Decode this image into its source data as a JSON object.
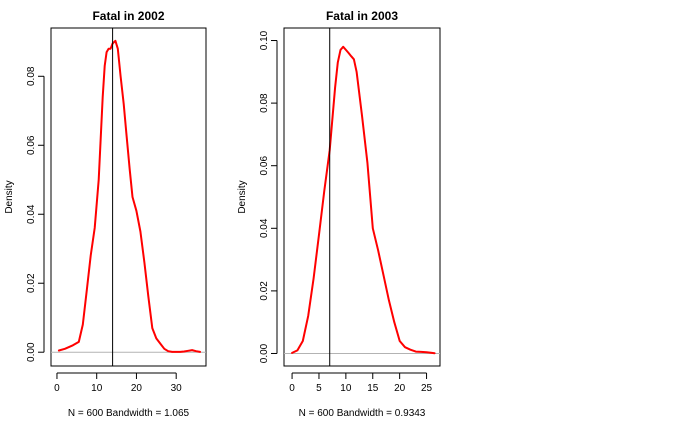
{
  "chart_data": [
    {
      "type": "line",
      "title": "Fatal in 2002",
      "xlabel": "N = 600   Bandwidth = 1.065",
      "ylabel": "Density",
      "xlim": [
        -1.5,
        37.5
      ],
      "ylim": [
        -0.004,
        0.094
      ],
      "xticks": [
        0,
        10,
        20,
        30
      ],
      "yticks": [
        0.0,
        0.02,
        0.04,
        0.06,
        0.08
      ],
      "ytick_labels": [
        "0.00",
        "0.02",
        "0.04",
        "0.06",
        "0.08"
      ],
      "vline": 14,
      "color": "#ff0000",
      "x": [
        0.5,
        2,
        4,
        5.5,
        6.5,
        7.5,
        8.5,
        9.5,
        10.5,
        11,
        11.5,
        12,
        12.5,
        13,
        13.5,
        14,
        14.7,
        15.3,
        16,
        16.8,
        17.5,
        18.3,
        19,
        20,
        21,
        22,
        23,
        24,
        25,
        26,
        27,
        28,
        29,
        30,
        31,
        32,
        33,
        34,
        35,
        36
      ],
      "y": [
        0.0005,
        0.001,
        0.002,
        0.003,
        0.008,
        0.018,
        0.028,
        0.036,
        0.05,
        0.062,
        0.074,
        0.083,
        0.087,
        0.088,
        0.088,
        0.0895,
        0.0903,
        0.088,
        0.08,
        0.072,
        0.063,
        0.053,
        0.045,
        0.041,
        0.035,
        0.026,
        0.016,
        0.007,
        0.004,
        0.0025,
        0.001,
        0.0003,
        0.0001,
        0.0001,
        0.0001,
        0.0002,
        0.0004,
        0.0006,
        0.0003,
        0.0001
      ]
    },
    {
      "type": "line",
      "title": "Fatal in 2003",
      "xlabel": "N = 600   Bandwidth = 0.9343",
      "ylabel": "Density",
      "xlim": [
        -1.5,
        27.5
      ],
      "ylim": [
        -0.004,
        0.104
      ],
      "xticks": [
        0,
        5,
        10,
        15,
        20,
        25
      ],
      "yticks": [
        0.0,
        0.02,
        0.04,
        0.06,
        0.08,
        0.1
      ],
      "ytick_labels": [
        "0.00",
        "0.02",
        "0.04",
        "0.06",
        "0.08",
        "0.10"
      ],
      "vline": 7,
      "color": "#ff0000",
      "x": [
        0,
        1,
        2,
        3,
        4,
        5,
        6,
        7,
        8,
        8.5,
        9,
        9.5,
        10,
        10.5,
        11,
        11.5,
        12,
        13,
        14,
        15,
        16,
        17,
        18,
        19,
        20,
        21,
        22,
        23,
        24,
        25,
        26,
        26.5
      ],
      "y": [
        0.0002,
        0.001,
        0.004,
        0.012,
        0.024,
        0.038,
        0.052,
        0.065,
        0.085,
        0.093,
        0.097,
        0.098,
        0.097,
        0.096,
        0.095,
        0.094,
        0.09,
        0.076,
        0.061,
        0.04,
        0.033,
        0.025,
        0.017,
        0.01,
        0.004,
        0.002,
        0.0012,
        0.0006,
        0.0005,
        0.0004,
        0.0002,
        0.0001
      ]
    }
  ]
}
